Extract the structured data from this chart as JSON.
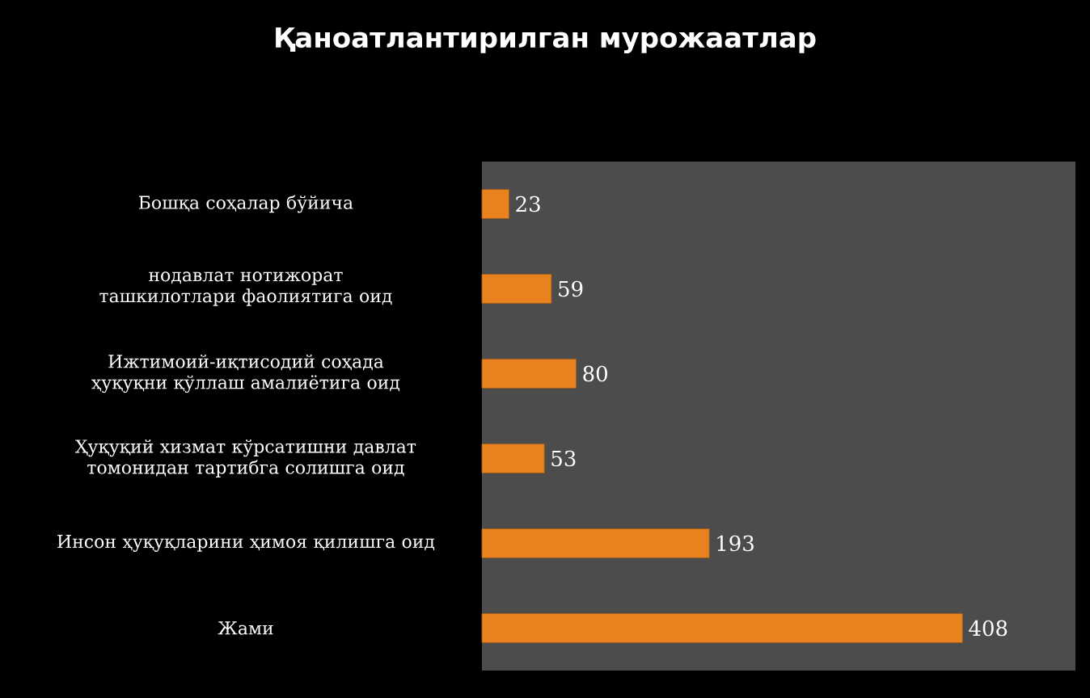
{
  "chart_data": {
    "type": "bar",
    "orientation": "horizontal",
    "title": "Қаноатлантирилган мурожаатлар",
    "categories": [
      "Бошқа соҳалар бўйича",
      "нодавлат нотижорат ташкилотлари фаолиятига оид",
      "Ижтимоий-иқтисодий соҳада ҳуқуқни қўллаш амалиётига оид",
      "Ҳуқуқий хизмат кўрсатишни давлат томонидан тартибга солишга оид",
      "Инсон ҳуқуқларини ҳимоя қилишга оид",
      "Жами"
    ],
    "values": [
      23,
      59,
      80,
      53,
      193,
      408
    ],
    "color": "#e8821e",
    "data_labels": true
  }
}
